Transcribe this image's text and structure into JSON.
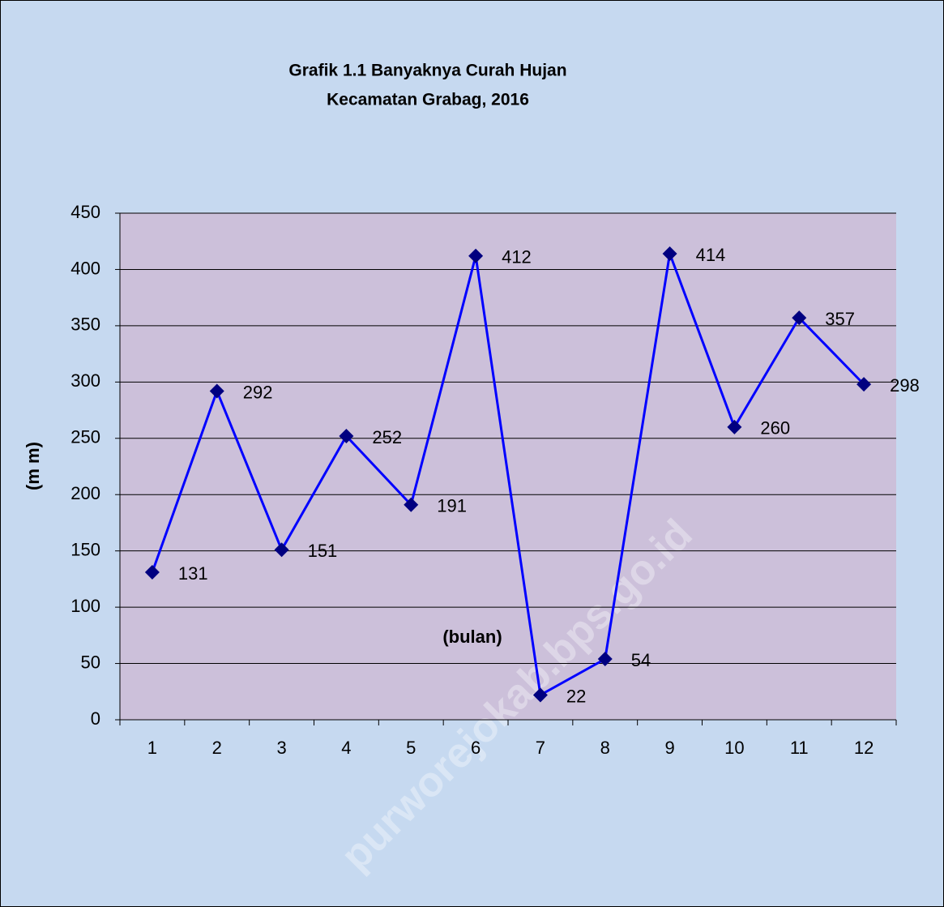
{
  "chart_data": {
    "type": "line",
    "title": [
      "Grafik 1.1  Banyaknya Curah Hujan",
      "Kecamatan Grabag, 2016"
    ],
    "x_label": "(bulan)",
    "y_label": "(m m)",
    "watermark": "purworejokab.bps.go.id",
    "categories": [
      "1",
      "2",
      "3",
      "4",
      "5",
      "6",
      "7",
      "8",
      "9",
      "10",
      "11",
      "12"
    ],
    "series": [
      {
        "color": "#0000ff",
        "marker_color": "#000080",
        "values": [
          131,
          292,
          151,
          252,
          191,
          412,
          22,
          54,
          414,
          260,
          357,
          298
        ]
      }
    ],
    "ylim": [
      0,
      450
    ],
    "yticks": [
      0,
      50,
      100,
      150,
      200,
      250,
      300,
      350,
      400,
      450
    ],
    "grid": true
  }
}
